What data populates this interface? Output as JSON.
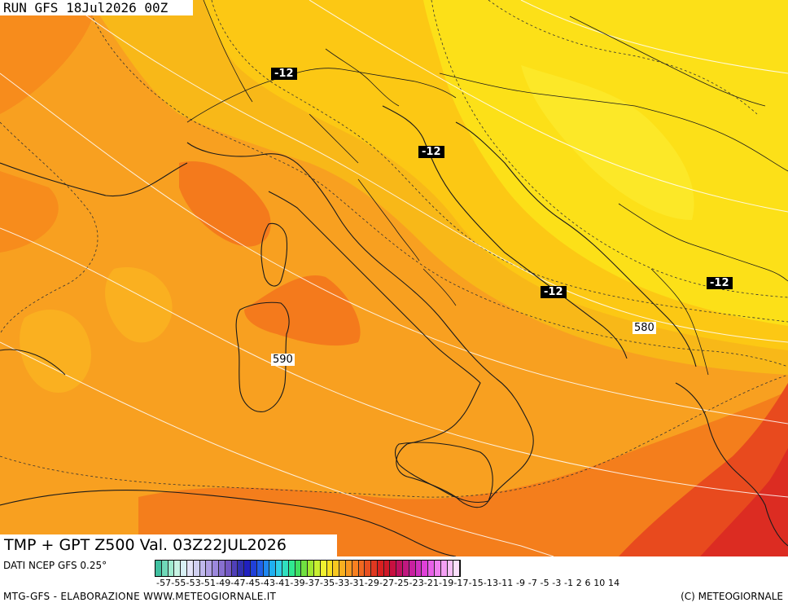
{
  "run_label": "RUN GFS 18Jul2026 00Z",
  "title": "TMP + GPT Z500 Val. 03Z22JUL2026",
  "source": "DATI NCEP GFS 0.25°",
  "footer_left": "MTG-GFS - ELABORAZIONE WWW.METEOGIORNALE.IT",
  "footer_right": "(C) METEOGIORNALE",
  "temperature_labels": [
    "-12",
    "-12",
    "-12",
    "-12"
  ],
  "geopotential_labels": [
    "590",
    "580"
  ],
  "scale_labels": "-57-55-53-51-49-47-45-43-41-39-37-35-33-31-29-27-25-23-21-19-17-15-13-11 -9 -7 -5 -3 -1  2  6 10 14",
  "scale_colors": [
    "#40c0a0",
    "#70d8b8",
    "#a0ecd0",
    "#c8f4e4",
    "#d8f0f4",
    "#e4e4f8",
    "#d0d0f0",
    "#c0b8ec",
    "#b0a0e4",
    "#9c88dc",
    "#8870d0",
    "#7458c4",
    "#5040b8",
    "#3030b0",
    "#2020c0",
    "#2040d8",
    "#2060e8",
    "#2088f0",
    "#20b0f0",
    "#30d0e8",
    "#30e0c0",
    "#30e890",
    "#40e060",
    "#70e040",
    "#a0e830",
    "#c8f030",
    "#f0f030",
    "#f8e020",
    "#f8c820",
    "#f8b020",
    "#f89820",
    "#f88020",
    "#f06820",
    "#e85020",
    "#e03820",
    "#d82020",
    "#d01828",
    "#c81040",
    "#c01060",
    "#c01880",
    "#c820a0",
    "#d030c0",
    "#e040d8",
    "#e860e8",
    "#f080f0",
    "#f4a0f4",
    "#f8c0f8",
    "#fce0fc"
  ]
}
